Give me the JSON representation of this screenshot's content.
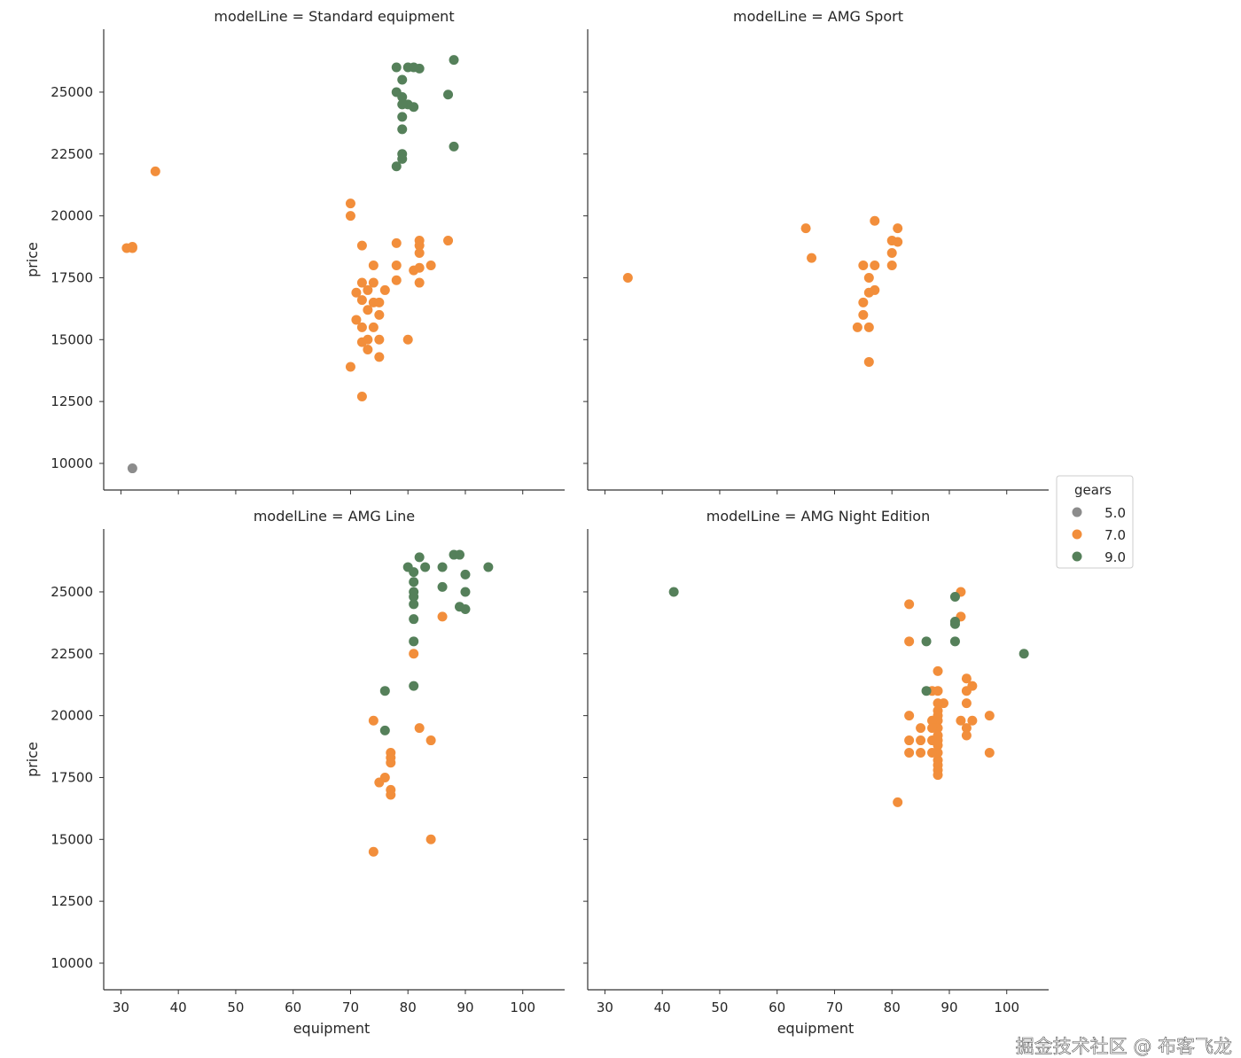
{
  "chart_data": {
    "type": "scatter",
    "facet": "modelLine",
    "xlabel": "equipment",
    "ylabel": "price",
    "xlim": [
      27,
      107.3
    ],
    "ylim": [
      8925,
      27540
    ],
    "xticks": [
      30,
      40,
      50,
      60,
      70,
      80,
      90,
      100
    ],
    "yticks": [
      10000,
      12500,
      15000,
      17500,
      20000,
      22500,
      25000
    ],
    "grid": false,
    "legend": {
      "title": "gears",
      "placement": "center-right",
      "entries": [
        {
          "label": "5.0",
          "color": "#8c8c8c"
        },
        {
          "label": "7.0",
          "color": "#f28e3b"
        },
        {
          "label": "9.0",
          "color": "#55805a"
        }
      ]
    },
    "panels": [
      {
        "title": "modelLine = Standard equipment",
        "series": [
          {
            "name": "5.0",
            "points": [
              [
                32,
                9800
              ]
            ]
          },
          {
            "name": "7.0",
            "points": [
              [
                31,
                18700
              ],
              [
                32,
                18700
              ],
              [
                32,
                18750
              ],
              [
                36,
                21800
              ],
              [
                70,
                20500
              ],
              [
                70,
                20000
              ],
              [
                72,
                18800
              ],
              [
                78,
                18900
              ],
              [
                82,
                19000
              ],
              [
                82,
                18800
              ],
              [
                82,
                18500
              ],
              [
                87,
                19000
              ],
              [
                74,
                18000
              ],
              [
                78,
                18000
              ],
              [
                84,
                18000
              ],
              [
                81,
                17800
              ],
              [
                82,
                17900
              ],
              [
                82,
                17300
              ],
              [
                78,
                17400
              ],
              [
                72,
                17300
              ],
              [
                74,
                17300
              ],
              [
                76,
                17000
              ],
              [
                71,
                16900
              ],
              [
                73,
                17000
              ],
              [
                72,
                16600
              ],
              [
                74,
                16500
              ],
              [
                75,
                16500
              ],
              [
                73,
                16200
              ],
              [
                75,
                16000
              ],
              [
                71,
                15800
              ],
              [
                72,
                15500
              ],
              [
                74,
                15500
              ],
              [
                73,
                15000
              ],
              [
                72,
                14900
              ],
              [
                75,
                15000
              ],
              [
                80,
                15000
              ],
              [
                73,
                14600
              ],
              [
                75,
                14300
              ],
              [
                70,
                13900
              ],
              [
                72,
                12700
              ]
            ]
          },
          {
            "name": "9.0",
            "points": [
              [
                78,
                26000
              ],
              [
                80,
                26000
              ],
              [
                81,
                26000
              ],
              [
                82,
                25950
              ],
              [
                88,
                26300
              ],
              [
                79,
                25500
              ],
              [
                78,
                25000
              ],
              [
                79,
                24800
              ],
              [
                80,
                24500
              ],
              [
                81,
                24400
              ],
              [
                79,
                24500
              ],
              [
                87,
                24900
              ],
              [
                79,
                24000
              ],
              [
                79,
                23500
              ],
              [
                79,
                22500
              ],
              [
                79,
                22300
              ],
              [
                78,
                22000
              ],
              [
                88,
                22800
              ]
            ]
          }
        ]
      },
      {
        "title": "modelLine = AMG Sport",
        "series": [
          {
            "name": "7.0",
            "points": [
              [
                34,
                17500
              ],
              [
                65,
                19500
              ],
              [
                66,
                18300
              ],
              [
                77,
                19800
              ],
              [
                81,
                19500
              ],
              [
                80,
                19000
              ],
              [
                81,
                18950
              ],
              [
                80,
                18500
              ],
              [
                75,
                18000
              ],
              [
                77,
                18000
              ],
              [
                80,
                18000
              ],
              [
                76,
                17500
              ],
              [
                76,
                16900
              ],
              [
                77,
                17000
              ],
              [
                75,
                16500
              ],
              [
                75,
                16000
              ],
              [
                74,
                15500
              ],
              [
                76,
                15500
              ],
              [
                76,
                14100
              ]
            ]
          }
        ]
      },
      {
        "title": "modelLine = AMG Line",
        "series": [
          {
            "name": "7.0",
            "points": [
              [
                86,
                24000
              ],
              [
                81,
                22500
              ],
              [
                74,
                19800
              ],
              [
                82,
                19500
              ],
              [
                84,
                19000
              ],
              [
                77,
                18500
              ],
              [
                77,
                18300
              ],
              [
                77,
                18100
              ],
              [
                76,
                17500
              ],
              [
                75,
                17300
              ],
              [
                77,
                17000
              ],
              [
                77,
                16800
              ],
              [
                84,
                15000
              ],
              [
                74,
                14500
              ]
            ]
          },
          {
            "name": "9.0",
            "points": [
              [
                82,
                26400
              ],
              [
                80,
                26000
              ],
              [
                81,
                25800
              ],
              [
                83,
                26000
              ],
              [
                81,
                25400
              ],
              [
                81,
                25000
              ],
              [
                81,
                24800
              ],
              [
                81,
                24500
              ],
              [
                81,
                23900
              ],
              [
                86,
                26000
              ],
              [
                88,
                26500
              ],
              [
                89,
                26500
              ],
              [
                90,
                25700
              ],
              [
                94,
                26000
              ],
              [
                86,
                25200
              ],
              [
                90,
                25000
              ],
              [
                89,
                24400
              ],
              [
                90,
                24300
              ],
              [
                81,
                23000
              ],
              [
                81,
                21200
              ],
              [
                76,
                21000
              ],
              [
                76,
                19400
              ]
            ]
          }
        ]
      },
      {
        "title": "modelLine = AMG Night Edition",
        "series": [
          {
            "name": "7.0",
            "points": [
              [
                92,
                25000
              ],
              [
                83,
                24500
              ],
              [
                92,
                24000
              ],
              [
                83,
                23000
              ],
              [
                88,
                21800
              ],
              [
                93,
                21500
              ],
              [
                94,
                21200
              ],
              [
                93,
                21000
              ],
              [
                87,
                21000
              ],
              [
                88,
                21000
              ],
              [
                89,
                20500
              ],
              [
                93,
                20500
              ],
              [
                83,
                20000
              ],
              [
                97,
                20000
              ],
              [
                92,
                19800
              ],
              [
                94,
                19800
              ],
              [
                93,
                19500
              ],
              [
                93,
                19200
              ],
              [
                85,
                19500
              ],
              [
                83,
                19000
              ],
              [
                85,
                19000
              ],
              [
                83,
                18500
              ],
              [
                85,
                18500
              ],
              [
                97,
                18500
              ],
              [
                81,
                16500
              ],
              [
                88,
                20500
              ],
              [
                88,
                20200
              ],
              [
                88,
                20000
              ],
              [
                88,
                19800
              ],
              [
                88,
                19500
              ],
              [
                88,
                19200
              ],
              [
                88,
                19000
              ],
              [
                88,
                18800
              ],
              [
                88,
                18500
              ],
              [
                88,
                18200
              ],
              [
                88,
                18000
              ],
              [
                88,
                17800
              ],
              [
                88,
                17600
              ],
              [
                87,
                19800
              ],
              [
                87,
                19500
              ],
              [
                87,
                19000
              ],
              [
                87,
                18500
              ]
            ]
          },
          {
            "name": "9.0",
            "points": [
              [
                42,
                25000
              ],
              [
                91,
                24800
              ],
              [
                91,
                23800
              ],
              [
                91,
                23700
              ],
              [
                86,
                23000
              ],
              [
                91,
                23000
              ],
              [
                103,
                22500
              ],
              [
                86,
                21000
              ]
            ]
          }
        ]
      }
    ]
  },
  "watermark": "掘金技术社区 @ 布客飞龙"
}
